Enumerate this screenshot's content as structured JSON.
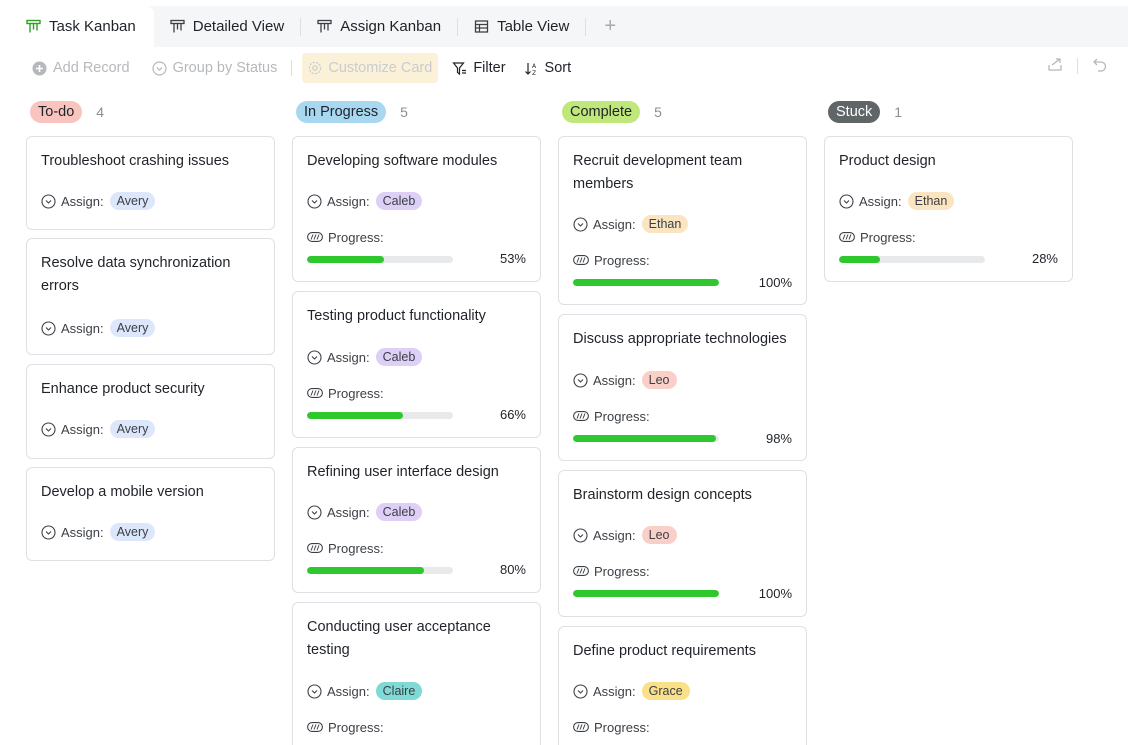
{
  "tabs": [
    {
      "label": "Task Kanban",
      "active": true
    },
    {
      "label": "Detailed View",
      "active": false
    },
    {
      "label": "Assign Kanban",
      "active": false
    },
    {
      "label": "Table View",
      "active": false
    }
  ],
  "toolbar": {
    "add_record": "Add Record",
    "group_by": "Group by Status",
    "customize_card": "Customize Card",
    "filter": "Filter",
    "sort": "Sort"
  },
  "labels": {
    "assign": "Assign:",
    "progress": "Progress:"
  },
  "colors": {
    "todo": "#f9c4bd",
    "in_progress": "#a8d8f0",
    "complete": "#bfe77a",
    "stuck": "#606568",
    "avery": "#dde7fb",
    "caleb": "#ddcff5",
    "claire": "#7fd9d4",
    "ethan": "#fbe4c0",
    "leo": "#f9cfc8",
    "grace": "#fbe08a",
    "progress_bar": "#2ec82e"
  },
  "columns": [
    {
      "name": "To-do",
      "count": "4",
      "cards": [
        {
          "title": "Troubleshoot crashing issues",
          "assignee": "Avery"
        },
        {
          "title": "Resolve data synchronization errors",
          "assignee": "Avery"
        },
        {
          "title": "Enhance product security",
          "assignee": "Avery"
        },
        {
          "title": "Develop a mobile version",
          "assignee": "Avery"
        }
      ]
    },
    {
      "name": "In Progress",
      "count": "5",
      "cards": [
        {
          "title": "Developing software modules",
          "assignee": "Caleb",
          "progress": 0.53,
          "progress_text": "53%"
        },
        {
          "title": "Testing product functionality",
          "assignee": "Caleb",
          "progress": 0.66,
          "progress_text": "66%"
        },
        {
          "title": "Refining user interface design",
          "assignee": "Caleb",
          "progress": 0.8,
          "progress_text": "80%"
        },
        {
          "title": "Conducting user acceptance testing",
          "assignee": "Claire"
        }
      ]
    },
    {
      "name": "Complete",
      "count": "5",
      "cards": [
        {
          "title": "Recruit development team members",
          "assignee": "Ethan",
          "progress": 1.0,
          "progress_text": "100%"
        },
        {
          "title": "Discuss appropriate technologies",
          "assignee": "Leo",
          "progress": 0.98,
          "progress_text": "98%"
        },
        {
          "title": "Brainstorm design concepts",
          "assignee": "Leo",
          "progress": 1.0,
          "progress_text": "100%"
        },
        {
          "title": "Define product requirements",
          "assignee": "Grace"
        }
      ]
    },
    {
      "name": "Stuck",
      "count": "1",
      "cards": [
        {
          "title": "Product design",
          "assignee": "Ethan",
          "progress": 0.28,
          "progress_text": "28%"
        }
      ]
    }
  ]
}
